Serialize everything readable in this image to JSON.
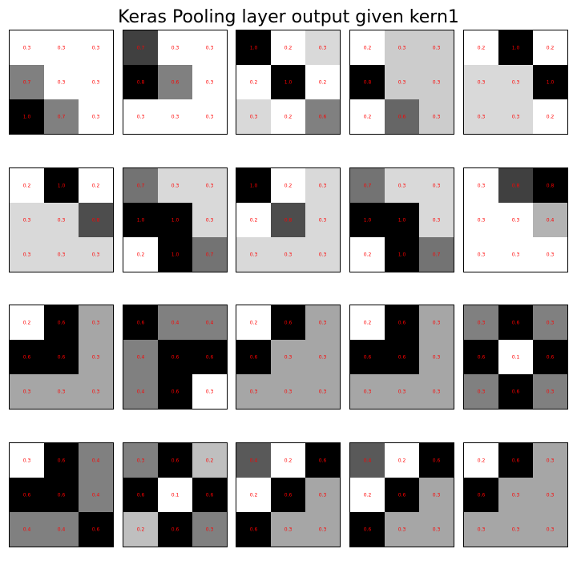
{
  "chart_data": {
    "type": "heatmap",
    "title": "Keras Pooling layer output given kern1",
    "grid": {
      "rows": 4,
      "cols": 5
    },
    "label_color": "#ff0000",
    "colormap": "gray_r",
    "panels": [
      {
        "values": [
          [
            0.3,
            0.3,
            0.3
          ],
          [
            0.7,
            0.3,
            0.3
          ],
          [
            1.0,
            0.7,
            0.3
          ]
        ],
        "shade": [
          [
            0.0,
            0.0,
            0.0
          ],
          [
            0.5,
            0.0,
            0.0
          ],
          [
            1.0,
            0.5,
            0.0
          ]
        ],
        "labels": [
          [
            "0.3",
            "0.3",
            "0.3"
          ],
          [
            "0.7",
            "0.3",
            "0.3"
          ],
          [
            "1.0",
            "0.7",
            "0.3"
          ]
        ]
      },
      {
        "values": [
          [
            0.7,
            0.3,
            0.3
          ],
          [
            0.8,
            0.6,
            0.3
          ],
          [
            0.3,
            0.3,
            0.3
          ]
        ],
        "shade": [
          [
            0.75,
            0.0,
            0.0
          ],
          [
            1.0,
            0.5,
            0.0
          ],
          [
            0.0,
            0.0,
            0.0
          ]
        ],
        "labels": [
          [
            "0.7",
            "0.3",
            "0.3"
          ],
          [
            "0.8",
            "0.6",
            "0.3"
          ],
          [
            "0.3",
            "0.3",
            "0.3"
          ]
        ]
      },
      {
        "values": [
          [
            1.0,
            0.2,
            0.3
          ],
          [
            0.2,
            1.0,
            0.2
          ],
          [
            0.3,
            0.2,
            0.6
          ]
        ],
        "shade": [
          [
            1.0,
            0.0,
            0.15
          ],
          [
            0.0,
            1.0,
            0.0
          ],
          [
            0.15,
            0.0,
            0.5
          ]
        ],
        "labels": [
          [
            "1.0",
            "0.2",
            "0.3"
          ],
          [
            "0.2",
            "1.0",
            "0.2"
          ],
          [
            "0.3",
            "0.2",
            "0.6"
          ]
        ]
      },
      {
        "values": [
          [
            0.2,
            0.3,
            0.3
          ],
          [
            0.8,
            0.3,
            0.3
          ],
          [
            0.2,
            0.6,
            0.3
          ]
        ],
        "shade": [
          [
            0.0,
            0.2,
            0.2
          ],
          [
            1.0,
            0.2,
            0.2
          ],
          [
            0.0,
            0.6,
            0.2
          ]
        ],
        "labels": [
          [
            "0.2",
            "0.3",
            "0.3"
          ],
          [
            "0.8",
            "0.3",
            "0.3"
          ],
          [
            "0.2",
            "0.6",
            "0.3"
          ]
        ]
      },
      {
        "values": [
          [
            0.2,
            1.0,
            0.2
          ],
          [
            0.3,
            0.3,
            1.0
          ],
          [
            0.3,
            0.3,
            0.2
          ]
        ],
        "shade": [
          [
            0.0,
            1.0,
            0.0
          ],
          [
            0.15,
            0.15,
            1.0
          ],
          [
            0.15,
            0.15,
            0.0
          ]
        ],
        "labels": [
          [
            "0.2",
            "1.0",
            "0.2"
          ],
          [
            "0.3",
            "0.3",
            "1.0"
          ],
          [
            "0.3",
            "0.3",
            "0.2"
          ]
        ]
      },
      {
        "values": [
          [
            0.2,
            1.0,
            0.2
          ],
          [
            0.3,
            0.3,
            0.8
          ],
          [
            0.3,
            0.3,
            0.3
          ]
        ],
        "shade": [
          [
            0.0,
            1.0,
            0.0
          ],
          [
            0.15,
            0.15,
            0.7
          ],
          [
            0.15,
            0.15,
            0.15
          ]
        ],
        "labels": [
          [
            "0.2",
            "1.0",
            "0.2"
          ],
          [
            "0.3",
            "0.3",
            "0.8"
          ],
          [
            "0.3",
            "0.3",
            "0.3"
          ]
        ]
      },
      {
        "values": [
          [
            0.7,
            0.3,
            0.3
          ],
          [
            1.0,
            1.0,
            0.3
          ],
          [
            0.2,
            1.0,
            0.7
          ]
        ],
        "shade": [
          [
            0.55,
            0.15,
            0.15
          ],
          [
            1.0,
            1.0,
            0.15
          ],
          [
            0.0,
            1.0,
            0.55
          ]
        ],
        "labels": [
          [
            "0.7",
            "0.3",
            "0.3"
          ],
          [
            "1.0",
            "1.0",
            "0.3"
          ],
          [
            "0.2",
            "1.0",
            "0.7"
          ]
        ]
      },
      {
        "values": [
          [
            1.0,
            0.2,
            0.3
          ],
          [
            0.2,
            0.8,
            0.3
          ],
          [
            0.3,
            0.3,
            0.3
          ]
        ],
        "shade": [
          [
            1.0,
            0.0,
            0.15
          ],
          [
            0.0,
            0.7,
            0.15
          ],
          [
            0.15,
            0.15,
            0.15
          ]
        ],
        "labels": [
          [
            "1.0",
            "0.2",
            "0.3"
          ],
          [
            "0.2",
            "0.8",
            "0.3"
          ],
          [
            "0.3",
            "0.3",
            "0.3"
          ]
        ]
      },
      {
        "values": [
          [
            0.7,
            0.3,
            0.3
          ],
          [
            1.0,
            1.0,
            0.3
          ],
          [
            0.2,
            1.0,
            0.7
          ]
        ],
        "shade": [
          [
            0.55,
            0.15,
            0.15
          ],
          [
            1.0,
            1.0,
            0.15
          ],
          [
            0.0,
            1.0,
            0.55
          ]
        ],
        "labels": [
          [
            "0.7",
            "0.3",
            "0.3"
          ],
          [
            "1.0",
            "1.0",
            "0.3"
          ],
          [
            "0.2",
            "1.0",
            "0.7"
          ]
        ]
      },
      {
        "values": [
          [
            0.3,
            0.8,
            0.8
          ],
          [
            0.3,
            0.3,
            0.4
          ],
          [
            0.3,
            0.3,
            0.3
          ]
        ],
        "shade": [
          [
            0.0,
            0.75,
            1.0
          ],
          [
            0.0,
            0.0,
            0.3
          ],
          [
            0.0,
            0.0,
            0.0
          ]
        ],
        "labels": [
          [
            "0.3",
            "0.8",
            "0.8"
          ],
          [
            "0.3",
            "0.3",
            "0.4"
          ],
          [
            "0.3",
            "0.3",
            "0.3"
          ]
        ]
      },
      {
        "values": [
          [
            0.2,
            0.6,
            0.3
          ],
          [
            0.6,
            0.6,
            0.3
          ],
          [
            0.3,
            0.3,
            0.3
          ]
        ],
        "shade": [
          [
            0.0,
            1.0,
            0.35
          ],
          [
            1.0,
            1.0,
            0.35
          ],
          [
            0.35,
            0.35,
            0.35
          ]
        ],
        "labels": [
          [
            "0.2",
            "0.6",
            "0.3"
          ],
          [
            "0.6",
            "0.6",
            "0.3"
          ],
          [
            "0.3",
            "0.3",
            "0.3"
          ]
        ]
      },
      {
        "values": [
          [
            0.6,
            0.4,
            0.4
          ],
          [
            0.4,
            0.6,
            0.6
          ],
          [
            0.4,
            0.6,
            0.3
          ]
        ],
        "shade": [
          [
            1.0,
            0.5,
            0.5
          ],
          [
            0.5,
            1.0,
            1.0
          ],
          [
            0.5,
            1.0,
            0.0
          ]
        ],
        "labels": [
          [
            "0.6",
            "0.4",
            "0.4"
          ],
          [
            "0.4",
            "0.6",
            "0.6"
          ],
          [
            "0.4",
            "0.6",
            "0.3"
          ]
        ]
      },
      {
        "values": [
          [
            0.2,
            0.6,
            0.3
          ],
          [
            0.6,
            0.3,
            0.3
          ],
          [
            0.3,
            0.3,
            0.3
          ]
        ],
        "shade": [
          [
            0.0,
            1.0,
            0.35
          ],
          [
            1.0,
            0.35,
            0.35
          ],
          [
            0.35,
            0.35,
            0.35
          ]
        ],
        "labels": [
          [
            "0.2",
            "0.6",
            "0.3"
          ],
          [
            "0.6",
            "0.3",
            "0.3"
          ],
          [
            "0.3",
            "0.3",
            "0.3"
          ]
        ]
      },
      {
        "values": [
          [
            0.2,
            0.6,
            0.3
          ],
          [
            0.6,
            0.6,
            0.3
          ],
          [
            0.3,
            0.3,
            0.3
          ]
        ],
        "shade": [
          [
            0.0,
            1.0,
            0.35
          ],
          [
            1.0,
            1.0,
            0.35
          ],
          [
            0.35,
            0.35,
            0.35
          ]
        ],
        "labels": [
          [
            "0.2",
            "0.6",
            "0.3"
          ],
          [
            "0.6",
            "0.6",
            "0.3"
          ],
          [
            "0.3",
            "0.3",
            "0.3"
          ]
        ]
      },
      {
        "values": [
          [
            0.3,
            0.6,
            0.3
          ],
          [
            0.6,
            0.1,
            0.6
          ],
          [
            0.3,
            0.6,
            0.3
          ]
        ],
        "shade": [
          [
            0.5,
            1.0,
            0.5
          ],
          [
            1.0,
            0.0,
            1.0
          ],
          [
            0.5,
            1.0,
            0.5
          ]
        ],
        "labels": [
          [
            "0.3",
            "0.6",
            "0.3"
          ],
          [
            "0.6",
            "0.1",
            "0.6"
          ],
          [
            "0.3",
            "0.6",
            "0.3"
          ]
        ]
      },
      {
        "values": [
          [
            0.3,
            0.6,
            0.4
          ],
          [
            0.6,
            0.6,
            0.4
          ],
          [
            0.4,
            0.4,
            0.6
          ]
        ],
        "shade": [
          [
            0.0,
            1.0,
            0.5
          ],
          [
            1.0,
            1.0,
            0.5
          ],
          [
            0.5,
            0.5,
            1.0
          ]
        ],
        "labels": [
          [
            "0.3",
            "0.6",
            "0.4"
          ],
          [
            "0.6",
            "0.6",
            "0.4"
          ],
          [
            "0.4",
            "0.4",
            "0.6"
          ]
        ]
      },
      {
        "values": [
          [
            0.3,
            0.6,
            0.2
          ],
          [
            0.6,
            0.1,
            0.6
          ],
          [
            0.2,
            0.6,
            0.3
          ]
        ],
        "shade": [
          [
            0.5,
            1.0,
            0.25
          ],
          [
            1.0,
            0.0,
            1.0
          ],
          [
            0.25,
            1.0,
            0.5
          ]
        ],
        "labels": [
          [
            "0.3",
            "0.6",
            "0.2"
          ],
          [
            "0.6",
            "0.1",
            "0.6"
          ],
          [
            "0.2",
            "0.6",
            "0.3"
          ]
        ]
      },
      {
        "values": [
          [
            0.4,
            0.2,
            0.6
          ],
          [
            0.2,
            0.6,
            0.3
          ],
          [
            0.6,
            0.3,
            0.3
          ]
        ],
        "shade": [
          [
            0.65,
            0.0,
            1.0
          ],
          [
            0.0,
            1.0,
            0.35
          ],
          [
            1.0,
            0.35,
            0.35
          ]
        ],
        "labels": [
          [
            "0.4",
            "0.2",
            "0.6"
          ],
          [
            "0.2",
            "0.6",
            "0.3"
          ],
          [
            "0.6",
            "0.3",
            "0.3"
          ]
        ]
      },
      {
        "values": [
          [
            0.4,
            0.2,
            0.6
          ],
          [
            0.2,
            0.6,
            0.3
          ],
          [
            0.6,
            0.3,
            0.3
          ]
        ],
        "shade": [
          [
            0.65,
            0.0,
            1.0
          ],
          [
            0.0,
            1.0,
            0.35
          ],
          [
            1.0,
            0.35,
            0.35
          ]
        ],
        "labels": [
          [
            "0.4",
            "0.2",
            "0.6"
          ],
          [
            "0.2",
            "0.6",
            "0.3"
          ],
          [
            "0.6",
            "0.3",
            "0.3"
          ]
        ]
      },
      {
        "values": [
          [
            0.2,
            0.6,
            0.3
          ],
          [
            0.6,
            0.3,
            0.3
          ],
          [
            0.3,
            0.3,
            0.3
          ]
        ],
        "shade": [
          [
            0.0,
            1.0,
            0.35
          ],
          [
            1.0,
            0.35,
            0.35
          ],
          [
            0.35,
            0.35,
            0.35
          ]
        ],
        "labels": [
          [
            "0.2",
            "0.6",
            "0.3"
          ],
          [
            "0.6",
            "0.3",
            "0.3"
          ],
          [
            "0.3",
            "0.3",
            "0.3"
          ]
        ]
      }
    ]
  }
}
